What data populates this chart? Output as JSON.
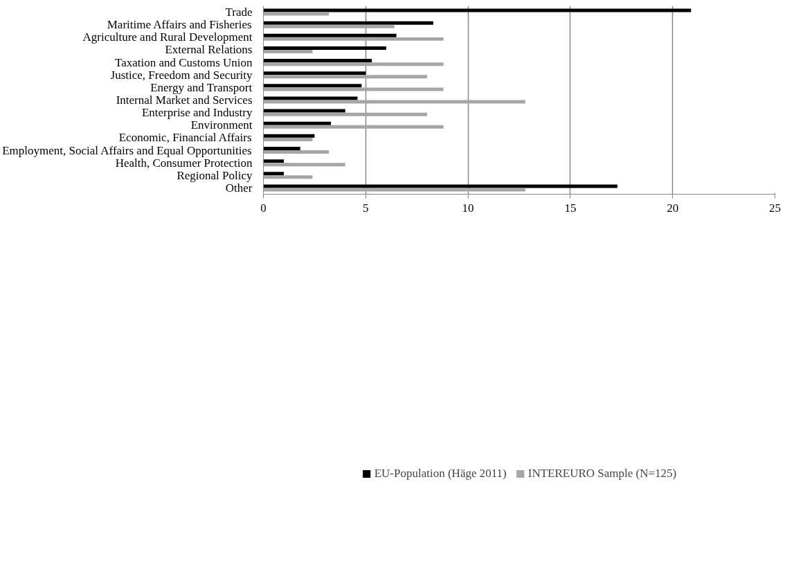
{
  "chart_data": {
    "type": "bar",
    "orientation": "horizontal",
    "categories": [
      "Trade",
      "Maritime Affairs and Fisheries",
      "Agriculture and Rural Development",
      "External Relations",
      "Taxation and Customs Union",
      "Justice, Freedom and Security",
      "Energy and Transport",
      "Internal Market and Services",
      "Enterprise and Industry",
      "Environment",
      "Economic, Financial Affairs",
      "Employment, Social Affairs and Equal Opportunities",
      "Health, Consumer Protection",
      "Regional Policy",
      "Other"
    ],
    "series": [
      {
        "name": "EU-Population (Häge 2011)",
        "color": "#000000",
        "values": [
          20.9,
          8.3,
          6.5,
          6.0,
          5.3,
          5.0,
          4.8,
          4.6,
          4.0,
          3.3,
          2.5,
          1.8,
          1.0,
          1.0,
          17.3
        ]
      },
      {
        "name": "INTEREURO Sample (N=125)",
        "color": "#a6a6a6",
        "values": [
          3.2,
          6.4,
          8.8,
          2.4,
          8.8,
          8.0,
          8.8,
          12.8,
          8.0,
          8.8,
          2.4,
          3.2,
          4.0,
          2.4,
          12.8
        ]
      }
    ],
    "xlim": [
      0,
      25
    ],
    "xticks": [
      0,
      5,
      10,
      15,
      20,
      25
    ],
    "grid": "x",
    "legend": "bottom"
  }
}
